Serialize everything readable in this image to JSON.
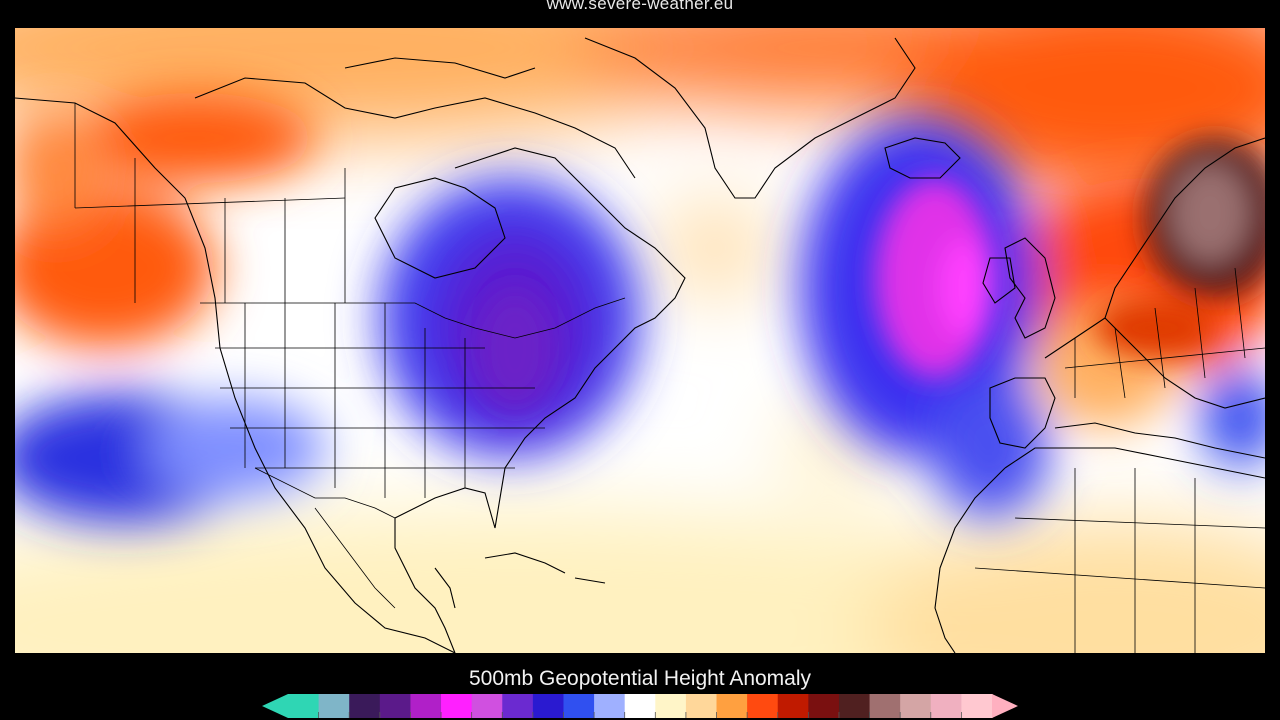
{
  "header": {
    "source": "www.severe-weather.eu"
  },
  "map": {
    "field": "500mb geopotential height anomaly",
    "projection": "equirectangular",
    "region": "North America, North Atlantic, Europe, North Africa",
    "features": [
      {
        "name": "Low (negative anomaly) over Great Lakes / NE US",
        "sign": "negative"
      },
      {
        "name": "Deep low west of Ireland / UK",
        "sign": "negative"
      },
      {
        "name": "Low over eastern Pacific",
        "sign": "negative"
      },
      {
        "name": "High over Scandinavia / NE Europe",
        "sign": "positive"
      },
      {
        "name": "High over Pacific Northwest / Alaska",
        "sign": "positive"
      },
      {
        "name": "High over Greenland / Arctic",
        "sign": "positive"
      }
    ]
  },
  "legend": {
    "title": "500mb Geopotential Height Anomaly",
    "colors": [
      "#2fd6b4",
      "#7fb5c8",
      "#3a1a5a",
      "#5b1a8a",
      "#b020c8",
      "#ff20ff",
      "#d050e0",
      "#6b2ad0",
      "#2a1ad0",
      "#3050f0",
      "#9fb0ff",
      "#ffffff",
      "#fff5c8",
      "#ffd79a",
      "#ffa040",
      "#ff4a10",
      "#c01a00",
      "#7a1010",
      "#502020",
      "#a07070",
      "#d4a5a5",
      "#f0b0c0",
      "#ffc8d0"
    ],
    "min_arrow_color": "#2fd6b4",
    "max_arrow_color": "#ffb0c0"
  }
}
